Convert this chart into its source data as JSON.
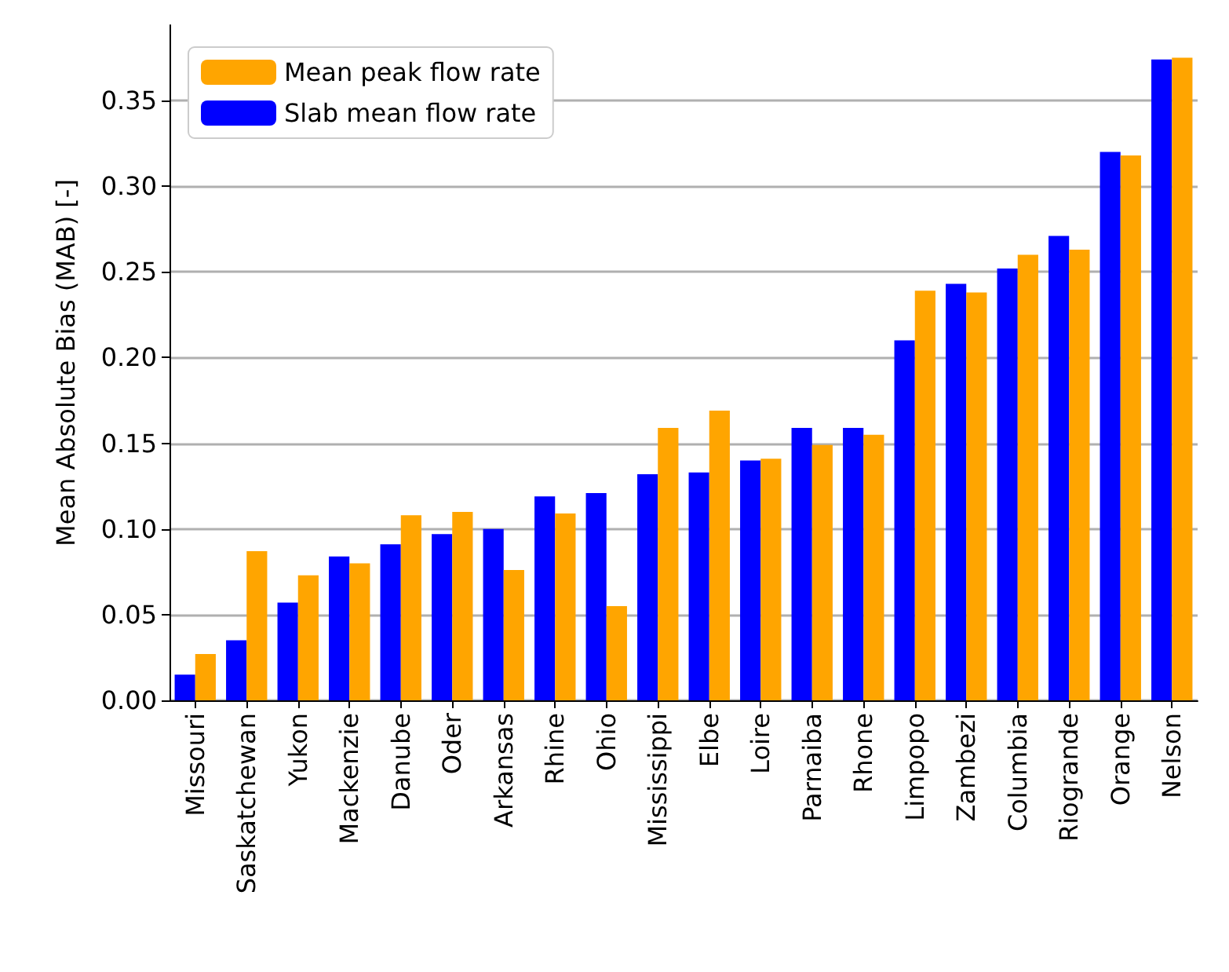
{
  "chart_data": {
    "type": "bar",
    "ylabel": "Mean Absolute Bias (MAB) [-]",
    "categories": [
      "Missouri",
      "Saskatchewan",
      "Yukon",
      "Mackenzie",
      "Danube",
      "Oder",
      "Arkansas",
      "Rhine",
      "Ohio",
      "Mississippi",
      "Elbe",
      "Loire",
      "Parnaiba",
      "Rhone",
      "Limpopo",
      "Zambezi",
      "Columbia",
      "Riogrande",
      "Orange",
      "Nelson"
    ],
    "series": [
      {
        "name": "Slab mean flow rate",
        "color": "#0000ff",
        "values": [
          0.015,
          0.035,
          0.057,
          0.084,
          0.091,
          0.097,
          0.1,
          0.119,
          0.121,
          0.132,
          0.133,
          0.14,
          0.159,
          0.159,
          0.21,
          0.243,
          0.252,
          0.271,
          0.32,
          0.374
        ]
      },
      {
        "name": "Mean peak flow rate",
        "color": "#ffa500",
        "values": [
          0.027,
          0.087,
          0.073,
          0.08,
          0.108,
          0.11,
          0.076,
          0.109,
          0.055,
          0.159,
          0.169,
          0.141,
          0.149,
          0.155,
          0.239,
          0.238,
          0.26,
          0.263,
          0.318,
          0.375
        ]
      }
    ],
    "ylim": [
      0,
      0.394
    ],
    "yticks": [
      {
        "value": 0,
        "label": "0.00"
      },
      0.05,
      {
        "value": 0.1,
        "label": "0.10"
      },
      0.15,
      {
        "value": 0.2,
        "label": "0.20"
      },
      0.25,
      {
        "value": 0.3,
        "label": "0.30"
      },
      0.35
    ],
    "grid": "y",
    "legend": "top left"
  }
}
